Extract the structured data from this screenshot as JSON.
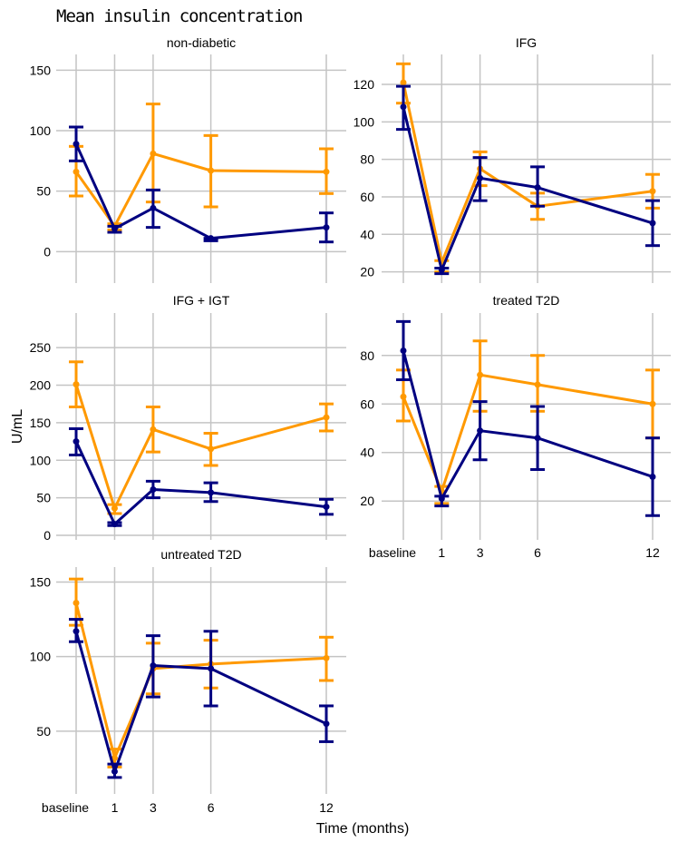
{
  "chart_data": {
    "type": "line",
    "title": "Mean insulin concentration",
    "xlabel": "Time (months)",
    "ylabel": "U/mL",
    "x_categories": [
      "baseline",
      "1",
      "3",
      "6",
      "12"
    ],
    "x_values": [
      -1,
      1,
      3,
      6,
      12
    ],
    "grid": true,
    "series_colors": {
      "blue": "#000080",
      "orange": "#FF9900"
    },
    "panels": [
      {
        "name": "non-diabetic",
        "ylim": [
          -26,
          163
        ],
        "yticks": [
          0,
          50,
          100,
          150
        ],
        "series": [
          {
            "color": "blue",
            "values": [
              89,
              19,
              36,
              11,
              20
            ],
            "err_low": [
              75,
              16,
              20,
              9,
              8
            ],
            "err_high": [
              103,
              21,
              51,
              11,
              32
            ]
          },
          {
            "color": "orange",
            "values": [
              66,
              21,
              81,
              67,
              66
            ],
            "err_low": [
              46,
              18,
              41,
              37,
              48
            ],
            "err_high": [
              87,
              23,
              122,
              96,
              85
            ]
          }
        ]
      },
      {
        "name": "IFG",
        "ylim": [
          14,
          136
        ],
        "yticks": [
          20,
          40,
          60,
          80,
          100,
          120
        ],
        "series": [
          {
            "color": "blue",
            "values": [
              108,
              21,
              70,
              65,
              46
            ],
            "err_low": [
              96,
              19,
              58,
              55,
              34
            ],
            "err_high": [
              119,
              22,
              81,
              76,
              58
            ]
          },
          {
            "color": "orange",
            "values": [
              121,
              25,
              75,
              55,
              63
            ],
            "err_low": [
              110,
              20,
              66,
              48,
              54
            ],
            "err_high": [
              131,
              26,
              84,
              62,
              72
            ]
          }
        ]
      },
      {
        "name": "IFG + IGT",
        "ylim": [
          -6,
          296
        ],
        "yticks": [
          0,
          50,
          100,
          150,
          200,
          250
        ],
        "series": [
          {
            "color": "blue",
            "values": [
              125,
              15,
              61,
              57,
              38
            ],
            "err_low": [
              107,
              13,
              50,
              45,
              28
            ],
            "err_high": [
              142,
              17,
              72,
              70,
              48
            ]
          },
          {
            "color": "orange",
            "values": [
              201,
              36,
              141,
              115,
              157
            ],
            "err_low": [
              171,
              29,
              111,
              93,
              139
            ],
            "err_high": [
              231,
              41,
              171,
              136,
              175
            ]
          }
        ]
      },
      {
        "name": "treated T2D",
        "ylim": [
          4,
          97.5
        ],
        "yticks": [
          20,
          40,
          60,
          80
        ],
        "series": [
          {
            "color": "blue",
            "values": [
              82,
              21,
              49,
              46,
              30
            ],
            "err_low": [
              70,
              18,
              37,
              33,
              14
            ],
            "err_high": [
              94,
              22,
              61,
              59,
              46
            ]
          },
          {
            "color": "orange",
            "values": [
              63,
              24,
              72,
              68,
              60
            ],
            "err_low": [
              53,
              19,
              57,
              57,
              46
            ],
            "err_high": [
              74,
              26,
              86,
              80,
              74
            ]
          }
        ]
      },
      {
        "name": "untreated T2D",
        "ylim": [
          8,
          160
        ],
        "yticks": [
          50,
          100,
          150
        ],
        "series": [
          {
            "color": "blue",
            "values": [
              117,
              23,
              94,
              92,
              55
            ],
            "err_low": [
              110,
              19,
              73,
              67,
              43
            ],
            "err_high": [
              125,
              28,
              114,
              117,
              67
            ]
          },
          {
            "color": "orange",
            "values": [
              136,
              32,
              92,
              95,
              99
            ],
            "err_low": [
              121,
              26,
              75,
              79,
              84
            ],
            "err_high": [
              152,
              38,
              109,
              111,
              113
            ]
          }
        ]
      }
    ]
  }
}
